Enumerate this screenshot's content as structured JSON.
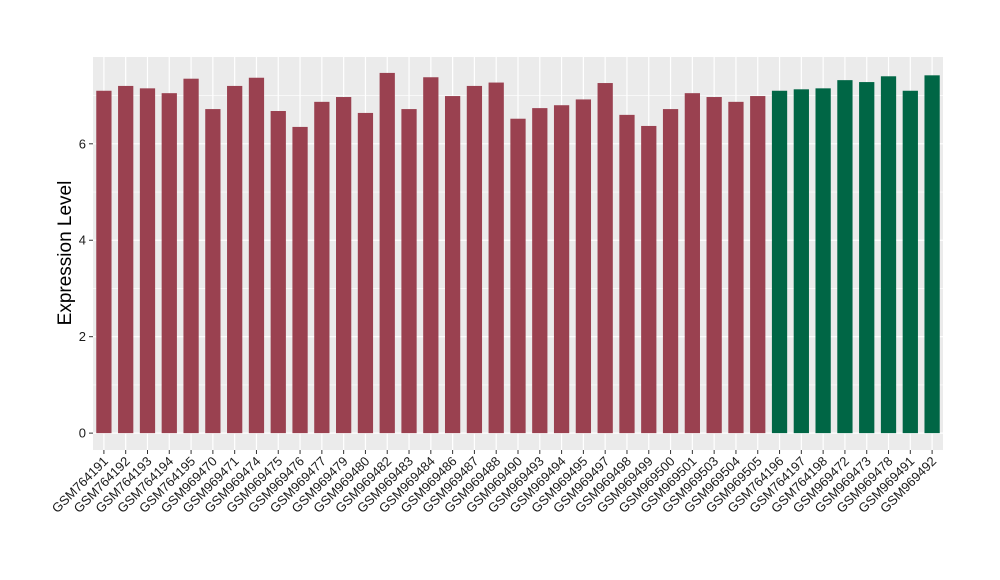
{
  "chart_data": {
    "type": "bar",
    "title": "",
    "xlabel": "",
    "ylabel": "Expression Level",
    "ylim": [
      -0.35,
      7.8
    ],
    "yticks": [
      0,
      2,
      4,
      6
    ],
    "grid": true,
    "legend": "none",
    "colors": {
      "group_a": "#9a4150",
      "group_b": "#006645",
      "panel": "#ebebeb",
      "grid": "#ffffff"
    },
    "categories": [
      "GSM764191",
      "GSM764192",
      "GSM764193",
      "GSM764194",
      "GSM764195",
      "GSM969470",
      "GSM969471",
      "GSM969474",
      "GSM969475",
      "GSM969476",
      "GSM969477",
      "GSM969479",
      "GSM969480",
      "GSM969482",
      "GSM969483",
      "GSM969484",
      "GSM969486",
      "GSM969487",
      "GSM969488",
      "GSM969490",
      "GSM969493",
      "GSM969494",
      "GSM969495",
      "GSM969497",
      "GSM969498",
      "GSM969499",
      "GSM969500",
      "GSM969501",
      "GSM969503",
      "GSM969504",
      "GSM969505",
      "GSM764196",
      "GSM764197",
      "GSM764198",
      "GSM969472",
      "GSM969473",
      "GSM969478",
      "GSM969491",
      "GSM969492"
    ],
    "values": [
      7.1,
      7.2,
      7.15,
      7.05,
      7.35,
      6.72,
      7.2,
      7.37,
      6.68,
      6.35,
      6.87,
      6.97,
      6.64,
      7.47,
      6.72,
      7.38,
      6.99,
      7.2,
      7.27,
      6.52,
      6.74,
      6.8,
      6.92,
      7.26,
      6.6,
      6.37,
      6.72,
      7.05,
      6.97,
      6.87,
      6.99,
      7.1,
      7.13,
      7.15,
      7.32,
      7.28,
      7.4,
      7.1,
      7.42
    ],
    "groups": [
      "a",
      "a",
      "a",
      "a",
      "a",
      "a",
      "a",
      "a",
      "a",
      "a",
      "a",
      "a",
      "a",
      "a",
      "a",
      "a",
      "a",
      "a",
      "a",
      "a",
      "a",
      "a",
      "a",
      "a",
      "a",
      "a",
      "a",
      "a",
      "a",
      "a",
      "a",
      "b",
      "b",
      "b",
      "b",
      "b",
      "b",
      "b",
      "b"
    ]
  }
}
